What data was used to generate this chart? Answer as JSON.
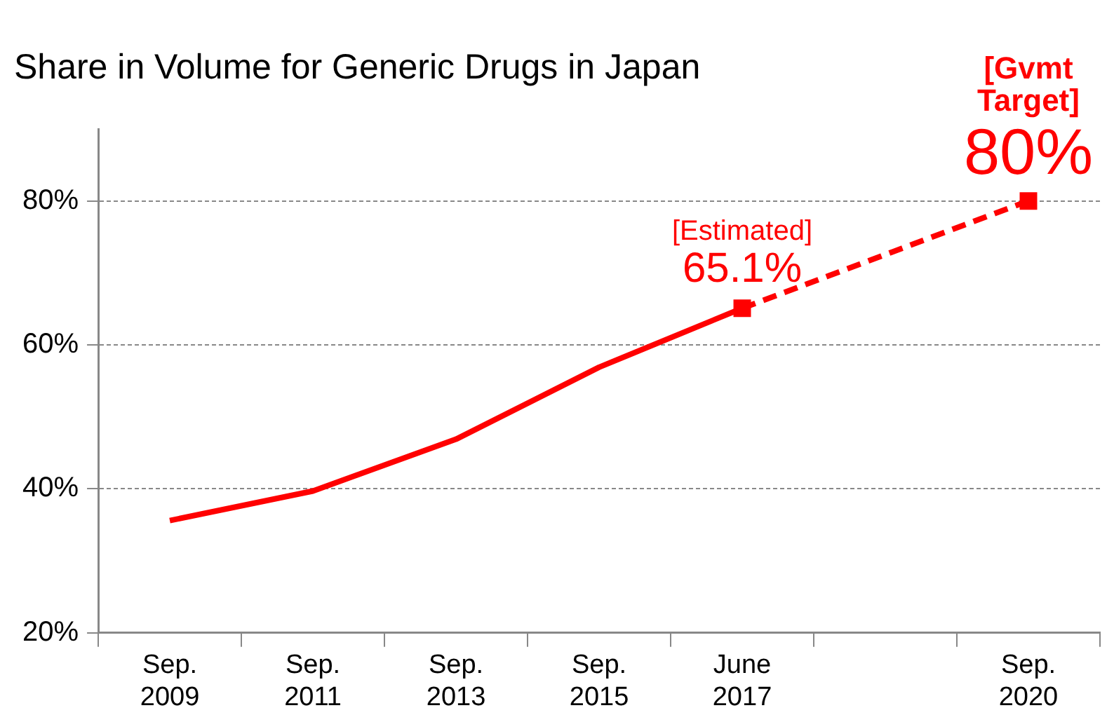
{
  "chart_data": {
    "type": "line",
    "title": "Share in Volume for Generic Drugs in Japan",
    "categories": [
      "Sep. 2009",
      "Sep. 2011",
      "Sep. 2013",
      "Sep. 2015",
      "June 2017",
      null,
      "Sep. 2020"
    ],
    "series": [
      {
        "color": "#ff0000",
        "line_style": "solid",
        "marker": "none",
        "values": [
          35.6,
          39.7,
          46.9,
          56.9,
          65.1,
          null,
          null
        ]
      },
      {
        "color": "#ff0000",
        "line_style": "dashed",
        "marker": "square",
        "values": [
          null,
          null,
          null,
          null,
          65.1,
          null,
          80
        ]
      }
    ],
    "ylim": [
      20,
      90
    ],
    "yticks": [
      {
        "value": 20,
        "label": "20%"
      },
      {
        "value": 40,
        "label": "40%"
      },
      {
        "value": 60,
        "label": "60%"
      },
      {
        "value": 80,
        "label": "80%"
      }
    ],
    "grid": "y",
    "legend": false,
    "annotations": [
      {
        "text": "[Estimated]",
        "x": "June 2017",
        "y": 65.1
      },
      {
        "text": "65.1%",
        "x": "June 2017",
        "y": 65.1
      },
      {
        "text": "[Gvmt Target]",
        "x": "Sep. 2020",
        "y": 80
      },
      {
        "text": "80%",
        "x": "Sep. 2020",
        "y": 80
      }
    ]
  }
}
